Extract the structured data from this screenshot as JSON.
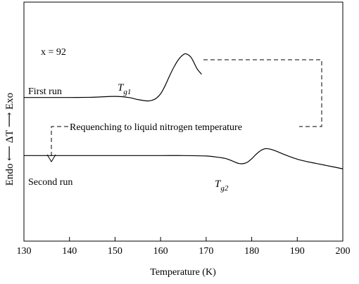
{
  "chart_data": {
    "type": "line",
    "title": "",
    "xlabel": "Temperature (K)",
    "ylabel": "Endo ⟵ ΔT ⟶ Exo",
    "xlim": [
      130,
      200
    ],
    "x_ticks": [
      130,
      140,
      150,
      160,
      170,
      180,
      190,
      200
    ],
    "y_ticks_shown": false,
    "grid": false,
    "legend": "none",
    "annotations": {
      "composition": "x = 92",
      "tg1": {
        "symbol": "T",
        "subscript": "g1",
        "x": 154
      },
      "tg2": {
        "symbol": "T",
        "subscript": "g2",
        "x": 176.5
      },
      "requench": "Requenching to liquid nitrogen temperature"
    },
    "series": [
      {
        "name": "First run",
        "color": "#000000",
        "x": [
          130,
          135,
          140,
          145,
          150,
          153,
          155,
          157,
          158,
          159,
          160,
          161,
          162,
          163,
          164,
          165,
          165.6,
          166.5,
          167,
          168,
          169
        ],
        "y": [
          0.2,
          0.2,
          0.2,
          0.25,
          0.45,
          0.2,
          -0.25,
          -0.55,
          -0.45,
          0.0,
          1.0,
          2.8,
          5.0,
          7.0,
          8.6,
          9.6,
          9.75,
          9.2,
          8.5,
          6.5,
          5.3
        ]
      },
      {
        "name": "Second run",
        "color": "#000000",
        "x": [
          130,
          140,
          150,
          160,
          165,
          170,
          172,
          174,
          175,
          176,
          177,
          178,
          179,
          180,
          181,
          182,
          183,
          184,
          185,
          186,
          188,
          190,
          192,
          194,
          196,
          198,
          200
        ],
        "y": [
          -12.5,
          -12.5,
          -12.5,
          -12.5,
          -12.5,
          -12.6,
          -12.8,
          -13.1,
          -13.4,
          -13.8,
          -14.2,
          -14.3,
          -14.0,
          -13.2,
          -12.2,
          -11.4,
          -11.0,
          -11.1,
          -11.4,
          -11.8,
          -12.6,
          -13.3,
          -13.8,
          -14.2,
          -14.6,
          -15.0,
          -15.4
        ]
      }
    ]
  }
}
